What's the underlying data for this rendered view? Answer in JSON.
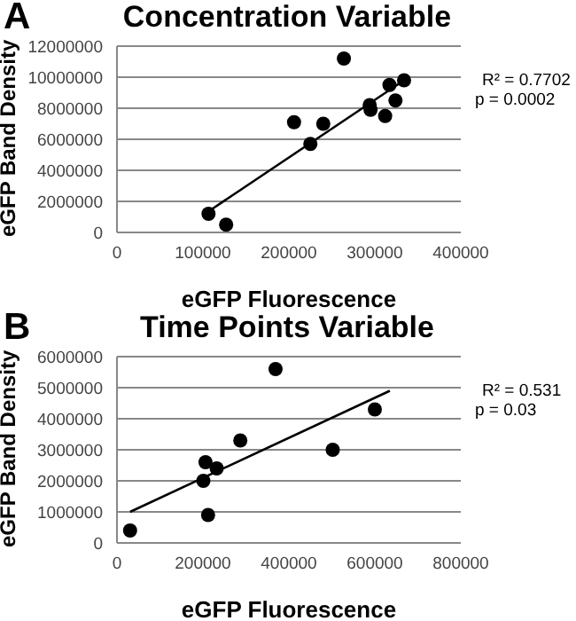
{
  "chart_data": [
    {
      "type": "scatter",
      "title": "Concentration Variable",
      "xlabel": "eGFP Fluorescence",
      "ylabel": "eGFP Band Density",
      "annotations": [
        "A",
        "R² = 0.7702",
        "p = 0.0002"
      ],
      "xlim": [
        0,
        400000
      ],
      "xticks": [
        0,
        100000,
        200000,
        300000,
        400000
      ],
      "ylim": [
        0,
        12000000
      ],
      "yticks": [
        0,
        2000000,
        4000000,
        6000000,
        8000000,
        10000000,
        12000000
      ],
      "grid": "y",
      "series": [
        {
          "marker": "circle",
          "color": "#000000",
          "x": [
            106500,
            127000,
            206000,
            225000,
            240000,
            264000,
            294000,
            295000,
            312000,
            317000,
            324000,
            334000
          ],
          "values": [
            1200000,
            500000,
            7100000,
            5700000,
            7000000,
            11200000,
            8200000,
            7900000,
            7500000,
            9500000,
            8500000,
            9800000
          ]
        },
        {
          "type": "line",
          "marker": "none",
          "color": "#000000",
          "x": [
            105000,
            334000
          ],
          "values": [
            1300000,
            9800000
          ]
        }
      ]
    },
    {
      "type": "scatter",
      "title": "Time Points Variable",
      "xlabel": "eGFP Fluorescence",
      "ylabel": "eGFP Band Density",
      "annotations": [
        "B",
        "R² = 0.531",
        "p = 0.03"
      ],
      "xlim": [
        0,
        800000
      ],
      "xticks": [
        0,
        200000,
        400000,
        600000,
        800000
      ],
      "ylim": [
        0,
        6000000
      ],
      "yticks": [
        0,
        1000000,
        2000000,
        3000000,
        4000000,
        5000000,
        6000000
      ],
      "grid": "y",
      "series": [
        {
          "marker": "circle",
          "color": "#000000",
          "x": [
            30500,
            201000,
            206000,
            212000,
            232000,
            287000,
            369000,
            502000,
            600000
          ],
          "values": [
            400000,
            2000000,
            2600000,
            900000,
            2400000,
            3300000,
            5600000,
            3000000,
            4300000
          ]
        },
        {
          "type": "line",
          "marker": "none",
          "color": "#000000",
          "x": [
            30500,
            635000
          ],
          "values": [
            1000000,
            4900000
          ]
        }
      ]
    }
  ]
}
